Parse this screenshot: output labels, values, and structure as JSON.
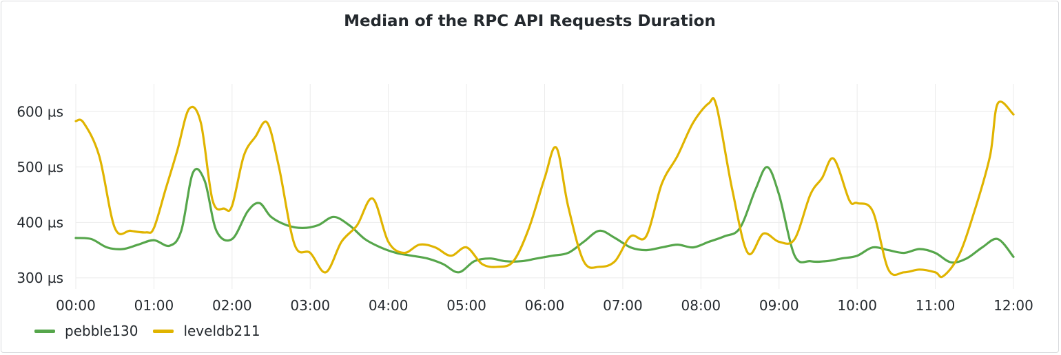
{
  "chart_data": {
    "type": "line",
    "title": "Median of the RPC API Requests Duration",
    "xlabel": "",
    "ylabel": "",
    "x_range_hours": [
      0,
      12
    ],
    "ylim": [
      280,
      650
    ],
    "x_ticks": [
      {
        "value": 0,
        "label": "00:00"
      },
      {
        "value": 1,
        "label": "01:00"
      },
      {
        "value": 2,
        "label": "02:00"
      },
      {
        "value": 3,
        "label": "03:00"
      },
      {
        "value": 4,
        "label": "04:00"
      },
      {
        "value": 5,
        "label": "05:00"
      },
      {
        "value": 6,
        "label": "06:00"
      },
      {
        "value": 7,
        "label": "07:00"
      },
      {
        "value": 8,
        "label": "08:00"
      },
      {
        "value": 9,
        "label": "09:00"
      },
      {
        "value": 10,
        "label": "10:00"
      },
      {
        "value": 11,
        "label": "11:00"
      },
      {
        "value": 12,
        "label": "12:00"
      }
    ],
    "y_ticks": [
      {
        "value": 300,
        "label": "300 µs"
      },
      {
        "value": 400,
        "label": "400 µs"
      },
      {
        "value": 500,
        "label": "500 µs"
      },
      {
        "value": 600,
        "label": "600 µs"
      }
    ],
    "grid": true,
    "legend_position": "bottom-left",
    "series": [
      {
        "name": "pebble130",
        "color": "#56a64b",
        "x": [
          0,
          0.2,
          0.4,
          0.6,
          0.8,
          1.0,
          1.2,
          1.35,
          1.5,
          1.65,
          1.8,
          2.0,
          2.2,
          2.35,
          2.5,
          2.7,
          2.9,
          3.1,
          3.3,
          3.5,
          3.7,
          3.9,
          4.1,
          4.3,
          4.5,
          4.7,
          4.9,
          5.1,
          5.3,
          5.5,
          5.7,
          5.9,
          6.1,
          6.3,
          6.5,
          6.7,
          6.9,
          7.1,
          7.3,
          7.5,
          7.7,
          7.9,
          8.1,
          8.3,
          8.5,
          8.7,
          8.85,
          9.0,
          9.2,
          9.4,
          9.6,
          9.8,
          10.0,
          10.2,
          10.4,
          10.6,
          10.8,
          11.0,
          11.2,
          11.4,
          11.6,
          11.8,
          12.0
        ],
        "values": [
          372,
          370,
          355,
          352,
          360,
          368,
          358,
          385,
          490,
          475,
          385,
          370,
          420,
          435,
          410,
          395,
          390,
          395,
          410,
          395,
          370,
          355,
          345,
          340,
          335,
          325,
          310,
          330,
          335,
          330,
          330,
          335,
          340,
          345,
          365,
          385,
          372,
          355,
          350,
          355,
          360,
          355,
          365,
          375,
          390,
          460,
          500,
          450,
          340,
          330,
          330,
          335,
          340,
          355,
          350,
          345,
          352,
          345,
          328,
          335,
          355,
          370,
          338
        ]
      },
      {
        "name": "leveldb211",
        "color": "#e0b400",
        "x": [
          0,
          0.1,
          0.3,
          0.5,
          0.7,
          0.9,
          1.0,
          1.15,
          1.3,
          1.45,
          1.6,
          1.75,
          1.9,
          2.0,
          2.15,
          2.3,
          2.45,
          2.6,
          2.8,
          3.0,
          3.2,
          3.4,
          3.6,
          3.8,
          4.0,
          4.2,
          4.4,
          4.6,
          4.8,
          5.0,
          5.2,
          5.4,
          5.6,
          5.8,
          6.0,
          6.15,
          6.3,
          6.5,
          6.7,
          6.9,
          7.1,
          7.3,
          7.5,
          7.7,
          7.9,
          8.1,
          8.2,
          8.4,
          8.6,
          8.8,
          9.0,
          9.2,
          9.4,
          9.55,
          9.7,
          9.9,
          10.0,
          10.2,
          10.4,
          10.6,
          10.8,
          11.0,
          11.1,
          11.3,
          11.5,
          11.7,
          11.8,
          12.0
        ],
        "values": [
          583,
          580,
          520,
          390,
          385,
          382,
          390,
          460,
          530,
          605,
          580,
          440,
          425,
          430,
          520,
          555,
          580,
          500,
          360,
          345,
          310,
          365,
          395,
          443,
          365,
          345,
          360,
          355,
          340,
          355,
          325,
          320,
          330,
          390,
          480,
          535,
          430,
          330,
          320,
          330,
          375,
          375,
          470,
          520,
          580,
          615,
          610,
          460,
          345,
          380,
          365,
          370,
          450,
          480,
          515,
          440,
          435,
          420,
          315,
          310,
          315,
          310,
          303,
          340,
          420,
          520,
          615,
          595
        ]
      }
    ]
  }
}
